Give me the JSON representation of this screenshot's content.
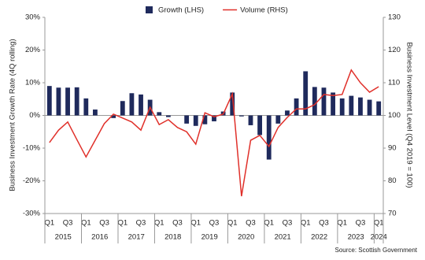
{
  "chart_data": {
    "type": "bar-line",
    "legend_position": "top",
    "y_axis_title": "Business Investment Growth Rate (4Q rolling)",
    "y2_axis_title": "Business Investment Level (Q4 2019 = 100)",
    "source": "Source: Scottish Government",
    "categories": [
      "Q1",
      null,
      "Q3",
      null,
      "Q1",
      null,
      "Q3",
      null,
      "Q1",
      null,
      "Q3",
      null,
      "Q1",
      null,
      "Q3",
      null,
      "Q1",
      null,
      "Q3",
      null,
      "Q1",
      null,
      "Q3",
      null,
      "Q1",
      null,
      "Q3",
      null,
      "Q1",
      null,
      "Q3",
      null,
      "Q1",
      null,
      "Q3",
      null,
      "Q1"
    ],
    "years": [
      "2015",
      "2016",
      "2017",
      "2018",
      "2019",
      "2020",
      "2021",
      "2022",
      "2023",
      "2024"
    ],
    "ylim": [
      -30,
      30
    ],
    "yticks": [
      {
        "value": -30,
        "label": "-30%"
      },
      {
        "value": -20,
        "label": "-20%"
      },
      {
        "value": -10,
        "label": "-10%"
      },
      {
        "value": 0,
        "label": "0%"
      },
      {
        "value": 10,
        "label": "10%"
      },
      {
        "value": 20,
        "label": "20%"
      },
      {
        "value": 30,
        "label": "30%"
      }
    ],
    "y2lim": [
      70,
      130
    ],
    "y2ticks": [
      70,
      80,
      90,
      100,
      110,
      120,
      130
    ],
    "series": [
      {
        "name": "Growth (LHS)",
        "kind": "bar",
        "color": "#1f2a5c",
        "values": [
          9.0,
          8.5,
          8.5,
          8.6,
          5.2,
          1.8,
          0,
          -0.8,
          4.4,
          6.8,
          6.4,
          4.8,
          1.0,
          -0.5,
          0,
          -2.5,
          -3.2,
          -2.7,
          -1.8,
          1.2,
          7.0,
          -0.3,
          -3.0,
          -6.0,
          -13.5,
          -2.5,
          1.5,
          5.2,
          13.5,
          8.7,
          8.5,
          7.0,
          5.2,
          6.0,
          5.5,
          4.8,
          4.3
        ]
      },
      {
        "name": "Volume (RHS)",
        "kind": "line",
        "axis": "y2",
        "color": "#e0302a",
        "values": [
          91.7,
          95.5,
          98,
          92.6,
          87.3,
          92.4,
          97.5,
          100.4,
          99.2,
          98,
          95.5,
          102.5,
          97.2,
          98.7,
          96.3,
          95,
          91.2,
          100.8,
          99.6,
          100.4,
          106.6,
          75.3,
          92.4,
          93.9,
          90.5,
          96.3,
          99.4,
          102,
          102,
          103.3,
          106.4,
          106.1,
          106.4,
          113.9,
          110,
          107.1,
          108.8
        ]
      }
    ]
  }
}
